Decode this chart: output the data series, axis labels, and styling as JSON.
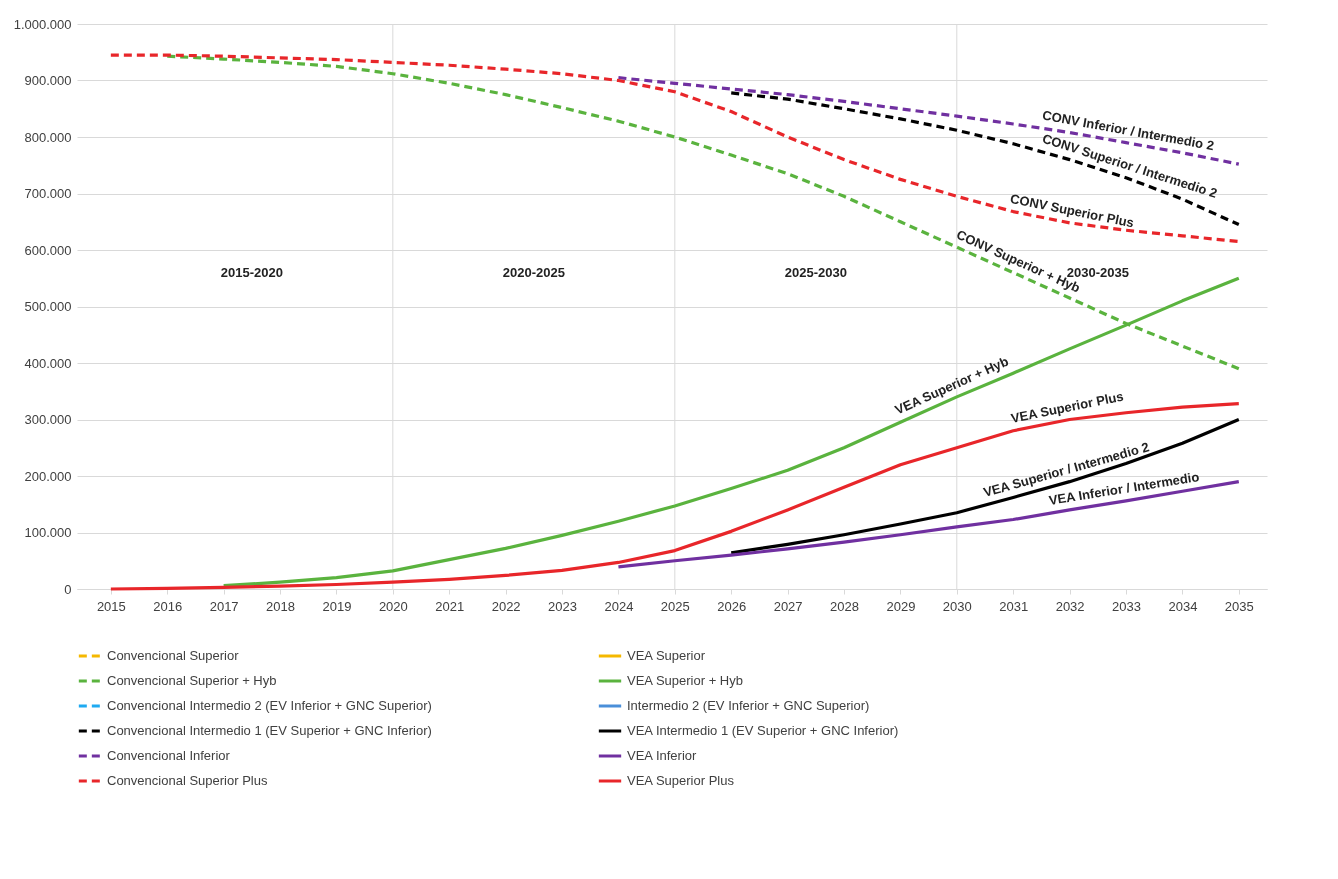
{
  "chart_data": {
    "type": "line",
    "x": [
      2015,
      2016,
      2017,
      2018,
      2019,
      2020,
      2021,
      2022,
      2023,
      2024,
      2025,
      2026,
      2027,
      2028,
      2029,
      2030,
      2031,
      2032,
      2033,
      2034,
      2035
    ],
    "xlim": [
      2014.4,
      2035.5
    ],
    "xticks": [
      2015,
      2016,
      2017,
      2018,
      2019,
      2020,
      2021,
      2022,
      2023,
      2024,
      2025,
      2026,
      2027,
      2028,
      2029,
      2030,
      2031,
      2032,
      2033,
      2034,
      2035
    ],
    "ylim": [
      0,
      1000000
    ],
    "yticks": [
      0,
      {
        "value": 100000,
        "label": "100.000"
      },
      {
        "value": 200000,
        "label": "200.000"
      },
      {
        "value": 300000,
        "label": "300.000"
      },
      {
        "value": 400000,
        "label": "400.000"
      },
      {
        "value": 500000,
        "label": "500.000"
      },
      {
        "value": 600000,
        "label": "600.000"
      },
      {
        "value": 700000,
        "label": "700.000"
      },
      {
        "value": 800000,
        "label": "800.000"
      },
      {
        "value": 900000,
        "label": "900.000"
      },
      {
        "value": 1000000,
        "label": "1.000.000"
      }
    ],
    "grid": "y",
    "legend": "bottom",
    "marker": "none",
    "series": [
      {
        "name": "Convencional Superior",
        "color": "#f5b800",
        "line_style": "dashed",
        "values": [
          null,
          null,
          null,
          null,
          null,
          null,
          null,
          null,
          null,
          null,
          null,
          null,
          null,
          null,
          null,
          null,
          null,
          null,
          null,
          null,
          null
        ]
      },
      {
        "name": "VEA Superior",
        "color": "#f5b800",
        "line_style": "solid",
        "values": [
          null,
          null,
          null,
          null,
          null,
          null,
          null,
          null,
          null,
          null,
          null,
          null,
          null,
          null,
          null,
          null,
          null,
          null,
          null,
          null,
          null
        ]
      },
      {
        "name": "Convencional Superior + Hyb",
        "color": "#5ab33e",
        "line_style": "dashed",
        "values": [
          null,
          943000,
          938000,
          932000,
          925000,
          912000,
          895000,
          875000,
          852000,
          828000,
          800000,
          768000,
          735000,
          695000,
          650000,
          605000,
          560000,
          515000,
          470000,
          430000,
          390000
        ]
      },
      {
        "name": "VEA Superior + Hyb",
        "color": "#5ab33e",
        "line_style": "solid",
        "values": [
          null,
          null,
          6000,
          12000,
          20000,
          32000,
          52000,
          72000,
          95000,
          120000,
          147000,
          178000,
          210000,
          250000,
          295000,
          340000,
          382000,
          425000,
          467000,
          510000,
          550000
        ]
      },
      {
        "name": "Convencional Intermedio 2 (EV Inferior + GNC Superior)",
        "color": "#1eaaf1",
        "line_style": "dashed",
        "values": [
          null,
          null,
          null,
          null,
          null,
          null,
          null,
          null,
          null,
          null,
          null,
          null,
          null,
          null,
          null,
          null,
          null,
          null,
          null,
          null,
          null
        ]
      },
      {
        "name": "Intermedio 2 (EV Inferior + GNC Superior)",
        "color": "#4a8fd9",
        "line_style": "solid",
        "values": [
          null,
          null,
          null,
          null,
          null,
          null,
          null,
          null,
          null,
          null,
          null,
          null,
          null,
          null,
          null,
          null,
          null,
          null,
          null,
          null,
          null
        ]
      },
      {
        "name": "Convencional Intermedio 1 (EV Superior + GNC Inferior)",
        "color": "#000000",
        "line_style": "dashed",
        "values": [
          null,
          null,
          null,
          null,
          null,
          null,
          null,
          null,
          null,
          null,
          null,
          878000,
          867000,
          850000,
          832000,
          812000,
          788000,
          760000,
          728000,
          690000,
          645000
        ]
      },
      {
        "name": "VEA Intermedio 1 (EV Superior + GNC Inferior)",
        "color": "#000000",
        "line_style": "solid",
        "values": [
          null,
          null,
          null,
          null,
          null,
          null,
          null,
          null,
          null,
          null,
          null,
          64000,
          79000,
          96000,
          115000,
          135000,
          162000,
          190000,
          222000,
          258000,
          300000
        ]
      },
      {
        "name": "Convencional Inferior",
        "color": "#7030a0",
        "line_style": "dashed",
        "values": [
          null,
          null,
          null,
          null,
          null,
          null,
          null,
          null,
          null,
          905000,
          895000,
          885000,
          875000,
          863000,
          850000,
          837000,
          823000,
          808000,
          790000,
          772000,
          752000
        ]
      },
      {
        "name": "VEA Inferior",
        "color": "#7030a0",
        "line_style": "solid",
        "values": [
          null,
          null,
          null,
          null,
          null,
          null,
          null,
          null,
          null,
          39000,
          50000,
          60000,
          71000,
          83000,
          96000,
          110000,
          123000,
          140000,
          156000,
          173000,
          190000
        ]
      },
      {
        "name": "Convencional Superior Plus",
        "color": "#e8262a",
        "line_style": "dashed",
        "values": [
          945000,
          945000,
          943000,
          940000,
          937000,
          932000,
          927000,
          920000,
          912000,
          900000,
          880000,
          845000,
          800000,
          760000,
          725000,
          695000,
          668000,
          648000,
          635000,
          625000,
          615000
        ]
      },
      {
        "name": "VEA Superior Plus",
        "color": "#e8262a",
        "line_style": "solid",
        "values": [
          0,
          1000,
          3000,
          5000,
          8000,
          12000,
          17000,
          24000,
          33000,
          47000,
          68000,
          102000,
          140000,
          180000,
          220000,
          250000,
          280000,
          300000,
          312000,
          322000,
          328000
        ]
      }
    ],
    "ref_lines": [
      {
        "axis": "x",
        "value": 2020,
        "color": "#d9d9d9"
      },
      {
        "axis": "x",
        "value": 2025,
        "color": "#d9d9d9"
      },
      {
        "axis": "x",
        "value": 2030,
        "color": "#d9d9d9"
      }
    ],
    "annotations": [
      "2015-2020",
      "2020-2025",
      "2025-2030",
      "2030-2035",
      {
        "text": "CONV Inferior / Intermedio 2",
        "x": 2033,
        "y": 790000
      },
      {
        "text": "CONV Superior / Intermedio 2",
        "x": 2033,
        "y": 728000
      },
      {
        "text": "CONV Superior Plus",
        "x": 2032,
        "y": 648000
      },
      {
        "text": "CONV Superior + Hyb",
        "x": 2031,
        "y": 560000
      },
      {
        "text": "VEA Superior + Hyb",
        "x": 2030,
        "y": 340000
      },
      {
        "text": "VEA Superior Plus",
        "x": 2032,
        "y": 300000
      },
      {
        "text": "VEA Superior / Intermedio 2",
        "x": 2032,
        "y": 190000
      },
      {
        "text": "VEA Inferior / Intermedio",
        "x": 2033,
        "y": 156000
      }
    ]
  }
}
